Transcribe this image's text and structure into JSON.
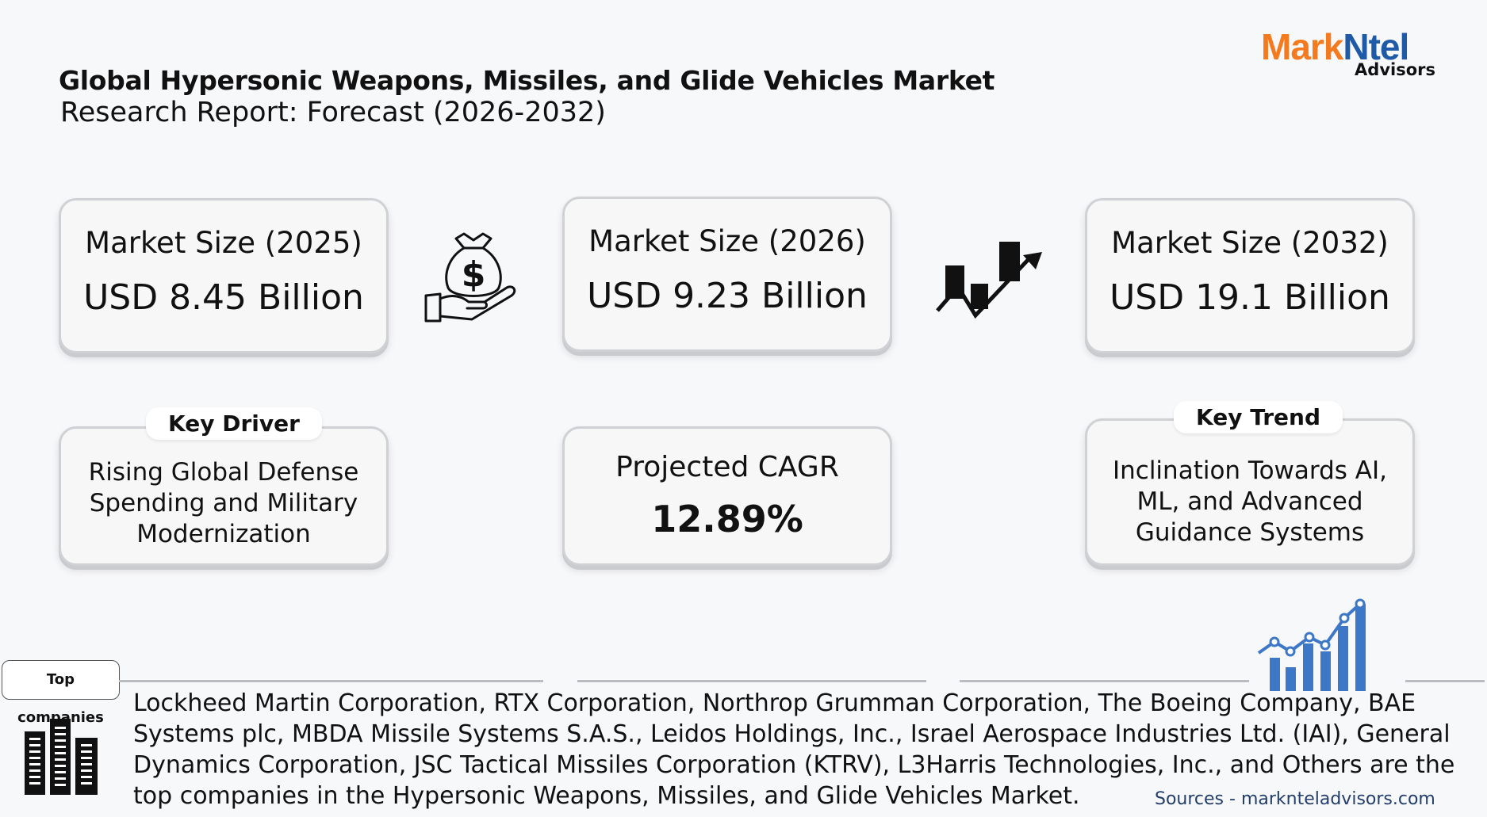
{
  "header": {
    "title_line1": "Global Hypersonic Weapons, Missiles, and Glide Vehicles Market",
    "title_line2": "Research Report: Forecast (2026-2032)"
  },
  "logo": {
    "mark": "Mark",
    "ntel": "Ntel",
    "sub": "Advisors",
    "colors": {
      "mark": "#f47a20",
      "ntel": "#1f5aa6"
    }
  },
  "cards": {
    "size_2025": {
      "label": "Market Size (2025)",
      "value": "USD 8.45 Billion"
    },
    "size_2026": {
      "label": "Market Size (2026)",
      "value": "USD 9.23 Billion"
    },
    "size_2032": {
      "label": "Market Size (2032)",
      "value": "USD 19.1 Billion"
    },
    "driver": {
      "tag": "Key Driver",
      "text": "Rising Global Defense Spending and Military Modernization"
    },
    "cagr": {
      "label": "Projected CAGR",
      "value": "12.89%"
    },
    "trend": {
      "tag": "Key Trend",
      "text": "Inclination Towards AI, ML, and Advanced Guidance Systems"
    }
  },
  "icons": [
    "money-bag-hand-icon",
    "growth-arrow-icon",
    "bar-chart-growth-icon",
    "buildings-icon"
  ],
  "companies": {
    "tag": "Top companies",
    "text": "Lockheed Martin Corporation, RTX Corporation, Northrop Grumman Corporation, The Boeing Company, BAE Systems plc, MBDA Missile Systems S.A.S., Leidos Holdings, Inc., Israel Aerospace Industries Ltd. (IAI), General Dynamics Corporation, JSC Tactical Missiles Corporation (KTRV), L3Harris Technologies, Inc., and Others are the top companies in the Hypersonic Weapons, Missiles, and Glide Vehicles Market."
  },
  "sources": "Sources - marknteladvisors.com"
}
